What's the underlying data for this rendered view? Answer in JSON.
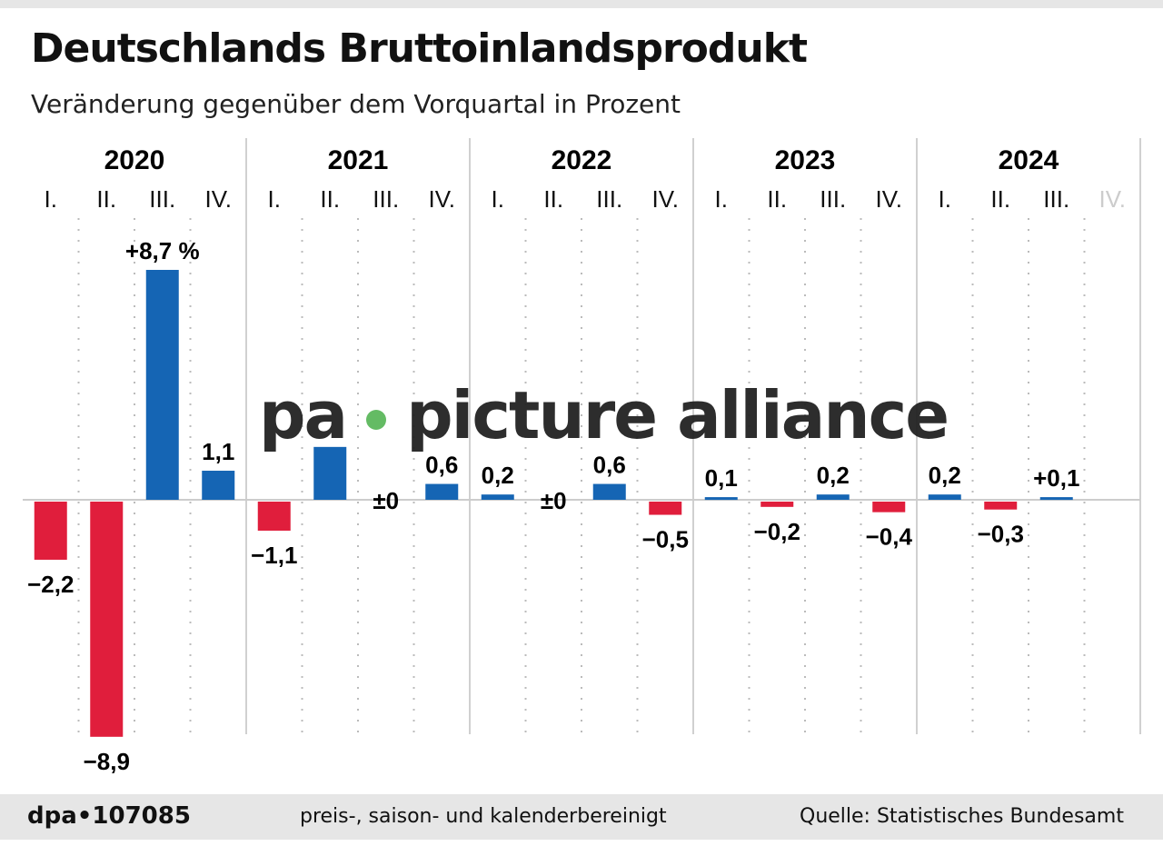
{
  "header": {
    "title": "Deutschlands Bruttoinlandsprodukt",
    "subtitle": "Veränderung gegenüber dem Vorquartal in Prozent"
  },
  "chart_data": {
    "type": "bar",
    "title": "Deutschlands Bruttoinlandsprodukt",
    "subtitle": "Veränderung gegenüber dem Vorquartal in Prozent",
    "years": [
      "2020",
      "2021",
      "2022",
      "2023",
      "2024"
    ],
    "quarter_labels": [
      "I.",
      "II.",
      "III.",
      "IV."
    ],
    "values": [
      -2.2,
      -8.9,
      8.7,
      1.1,
      -1.1,
      2.0,
      0,
      0.6,
      0.2,
      0,
      0.6,
      -0.5,
      0.1,
      -0.2,
      0.2,
      -0.4,
      0.2,
      -0.3,
      0.1,
      null
    ],
    "labels": [
      "−2,2",
      "−8,9",
      "+8,7 %",
      "1,1",
      "−1,1",
      "",
      "±0",
      "0,6",
      "0,2",
      "±0",
      "0,6",
      "−0,5",
      "0,1",
      "−0,2",
      "0,2",
      "−0,4",
      "0,2",
      "−0,3",
      "+0,1",
      ""
    ],
    "ylim": [
      -8.9,
      8.7
    ],
    "grid": "dotted vertical",
    "colors": {
      "positive": "#1565b4",
      "negative": "#e01e3c",
      "pending_quarter": "#cccccc"
    }
  },
  "watermark": {
    "left": "pa",
    "right": "picture alliance"
  },
  "footer": {
    "logo": "dpa•107085",
    "note": "preis-, saison- und kalenderbereinigt",
    "source": "Quelle: Statistisches Bundesamt"
  }
}
